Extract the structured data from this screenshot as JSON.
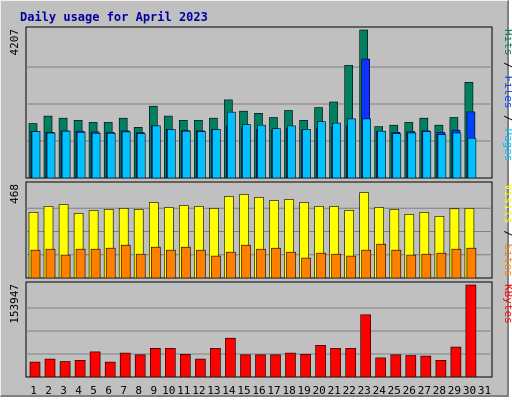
{
  "title": "Daily usage for April 2023",
  "chart_data": {
    "type": "bar",
    "title": "Daily usage for April 2023",
    "categories": [
      "1",
      "2",
      "3",
      "4",
      "5",
      "6",
      "7",
      "8",
      "9",
      "10",
      "11",
      "12",
      "13",
      "14",
      "15",
      "16",
      "17",
      "18",
      "19",
      "20",
      "21",
      "22",
      "23",
      "24",
      "25",
      "26",
      "27",
      "28",
      "29",
      "30",
      "31"
    ],
    "weekend_days": [
      "1",
      "8",
      "9",
      "15",
      "16",
      "22",
      "23",
      "29",
      "30"
    ],
    "highlight_day": "23",
    "panels": [
      {
        "max_label": "4207",
        "ymax": 4207,
        "side_labels": [
          {
            "text": "Pages",
            "color": "#00c0ff"
          },
          {
            "text": " / ",
            "color": "#000000"
          },
          {
            "text": "Files",
            "color": "#0040ff"
          },
          {
            "text": " / ",
            "color": "#000000"
          },
          {
            "text": "Hits",
            "color": "#008060"
          }
        ],
        "series": [
          {
            "name": "Hits",
            "color": "#008060",
            "values": [
              1550,
              1760,
              1700,
              1640,
              1580,
              1580,
              1700,
              1440,
              2040,
              1760,
              1640,
              1640,
              1700,
              2220,
              1900,
              1840,
              1720,
              1920,
              1640,
              2000,
              2160,
              3200,
              4207,
              1460,
              1500,
              1580,
              1700,
              1500,
              1720,
              2720,
              null
            ]
          },
          {
            "name": "Files",
            "color": "#0040ff",
            "highlight": "#1030ff",
            "values": [
              1320,
              1300,
              1340,
              1330,
              1310,
              1300,
              1340,
              1290,
              1480,
              1380,
              1350,
              1340,
              1380,
              1480,
              1420,
              1380,
              1360,
              1400,
              1360,
              1420,
              1440,
              1480,
              3380,
              1320,
              1300,
              1320,
              1340,
              1300,
              1360,
              1880,
              null
            ]
          },
          {
            "name": "Pages",
            "color": "#00c0ff",
            "values": [
              1320,
              1280,
              1330,
              1300,
              1270,
              1270,
              1310,
              1260,
              1480,
              1380,
              1330,
              1320,
              1380,
              1870,
              1520,
              1500,
              1400,
              1480,
              1380,
              1600,
              1560,
              1680,
              1680,
              1330,
              1260,
              1280,
              1320,
              1230,
              1280,
              1130,
              null
            ]
          }
        ]
      },
      {
        "max_label": "468",
        "ymax": 468,
        "side_labels": [
          {
            "text": "Sites",
            "color": "#ff8000"
          },
          {
            "text": " / ",
            "color": "#000000"
          },
          {
            "text": "Visits",
            "color": "#ffff00"
          }
        ],
        "series": [
          {
            "name": "Visits",
            "color": "#ffff00",
            "values": [
              330,
              360,
              370,
              325,
              340,
              345,
              350,
              345,
              380,
              355,
              365,
              360,
              350,
              410,
              420,
              405,
              390,
              395,
              380,
              360,
              360,
              340,
              430,
              355,
              345,
              320,
              330,
              310,
              348,
              350,
              null
            ]
          },
          {
            "name": "Sites",
            "color": "#ff8000",
            "values": [
              140,
              145,
              115,
              145,
              145,
              150,
              165,
              120,
              155,
              140,
              155,
              140,
              110,
              130,
              165,
              145,
              150,
              130,
              100,
              125,
              120,
              110,
              140,
              170,
              140,
              115,
              120,
              125,
              145,
              150,
              null
            ]
          }
        ]
      },
      {
        "max_label": "153947",
        "ymax": 153947,
        "side_labels": [
          {
            "text": "KBytes",
            "color": "#ff0000"
          }
        ],
        "series": [
          {
            "name": "KBytes",
            "color": "#ff0000",
            "values": [
              25000,
              30000,
              26000,
              28000,
              42000,
              25000,
              40000,
              37000,
              48000,
              48000,
              38000,
              30000,
              48000,
              65000,
              37000,
              37000,
              37000,
              40000,
              38000,
              53000,
              48000,
              48000,
              104000,
              32000,
              37000,
              36000,
              35000,
              28000,
              50000,
              153947,
              null
            ]
          }
        ]
      }
    ]
  }
}
